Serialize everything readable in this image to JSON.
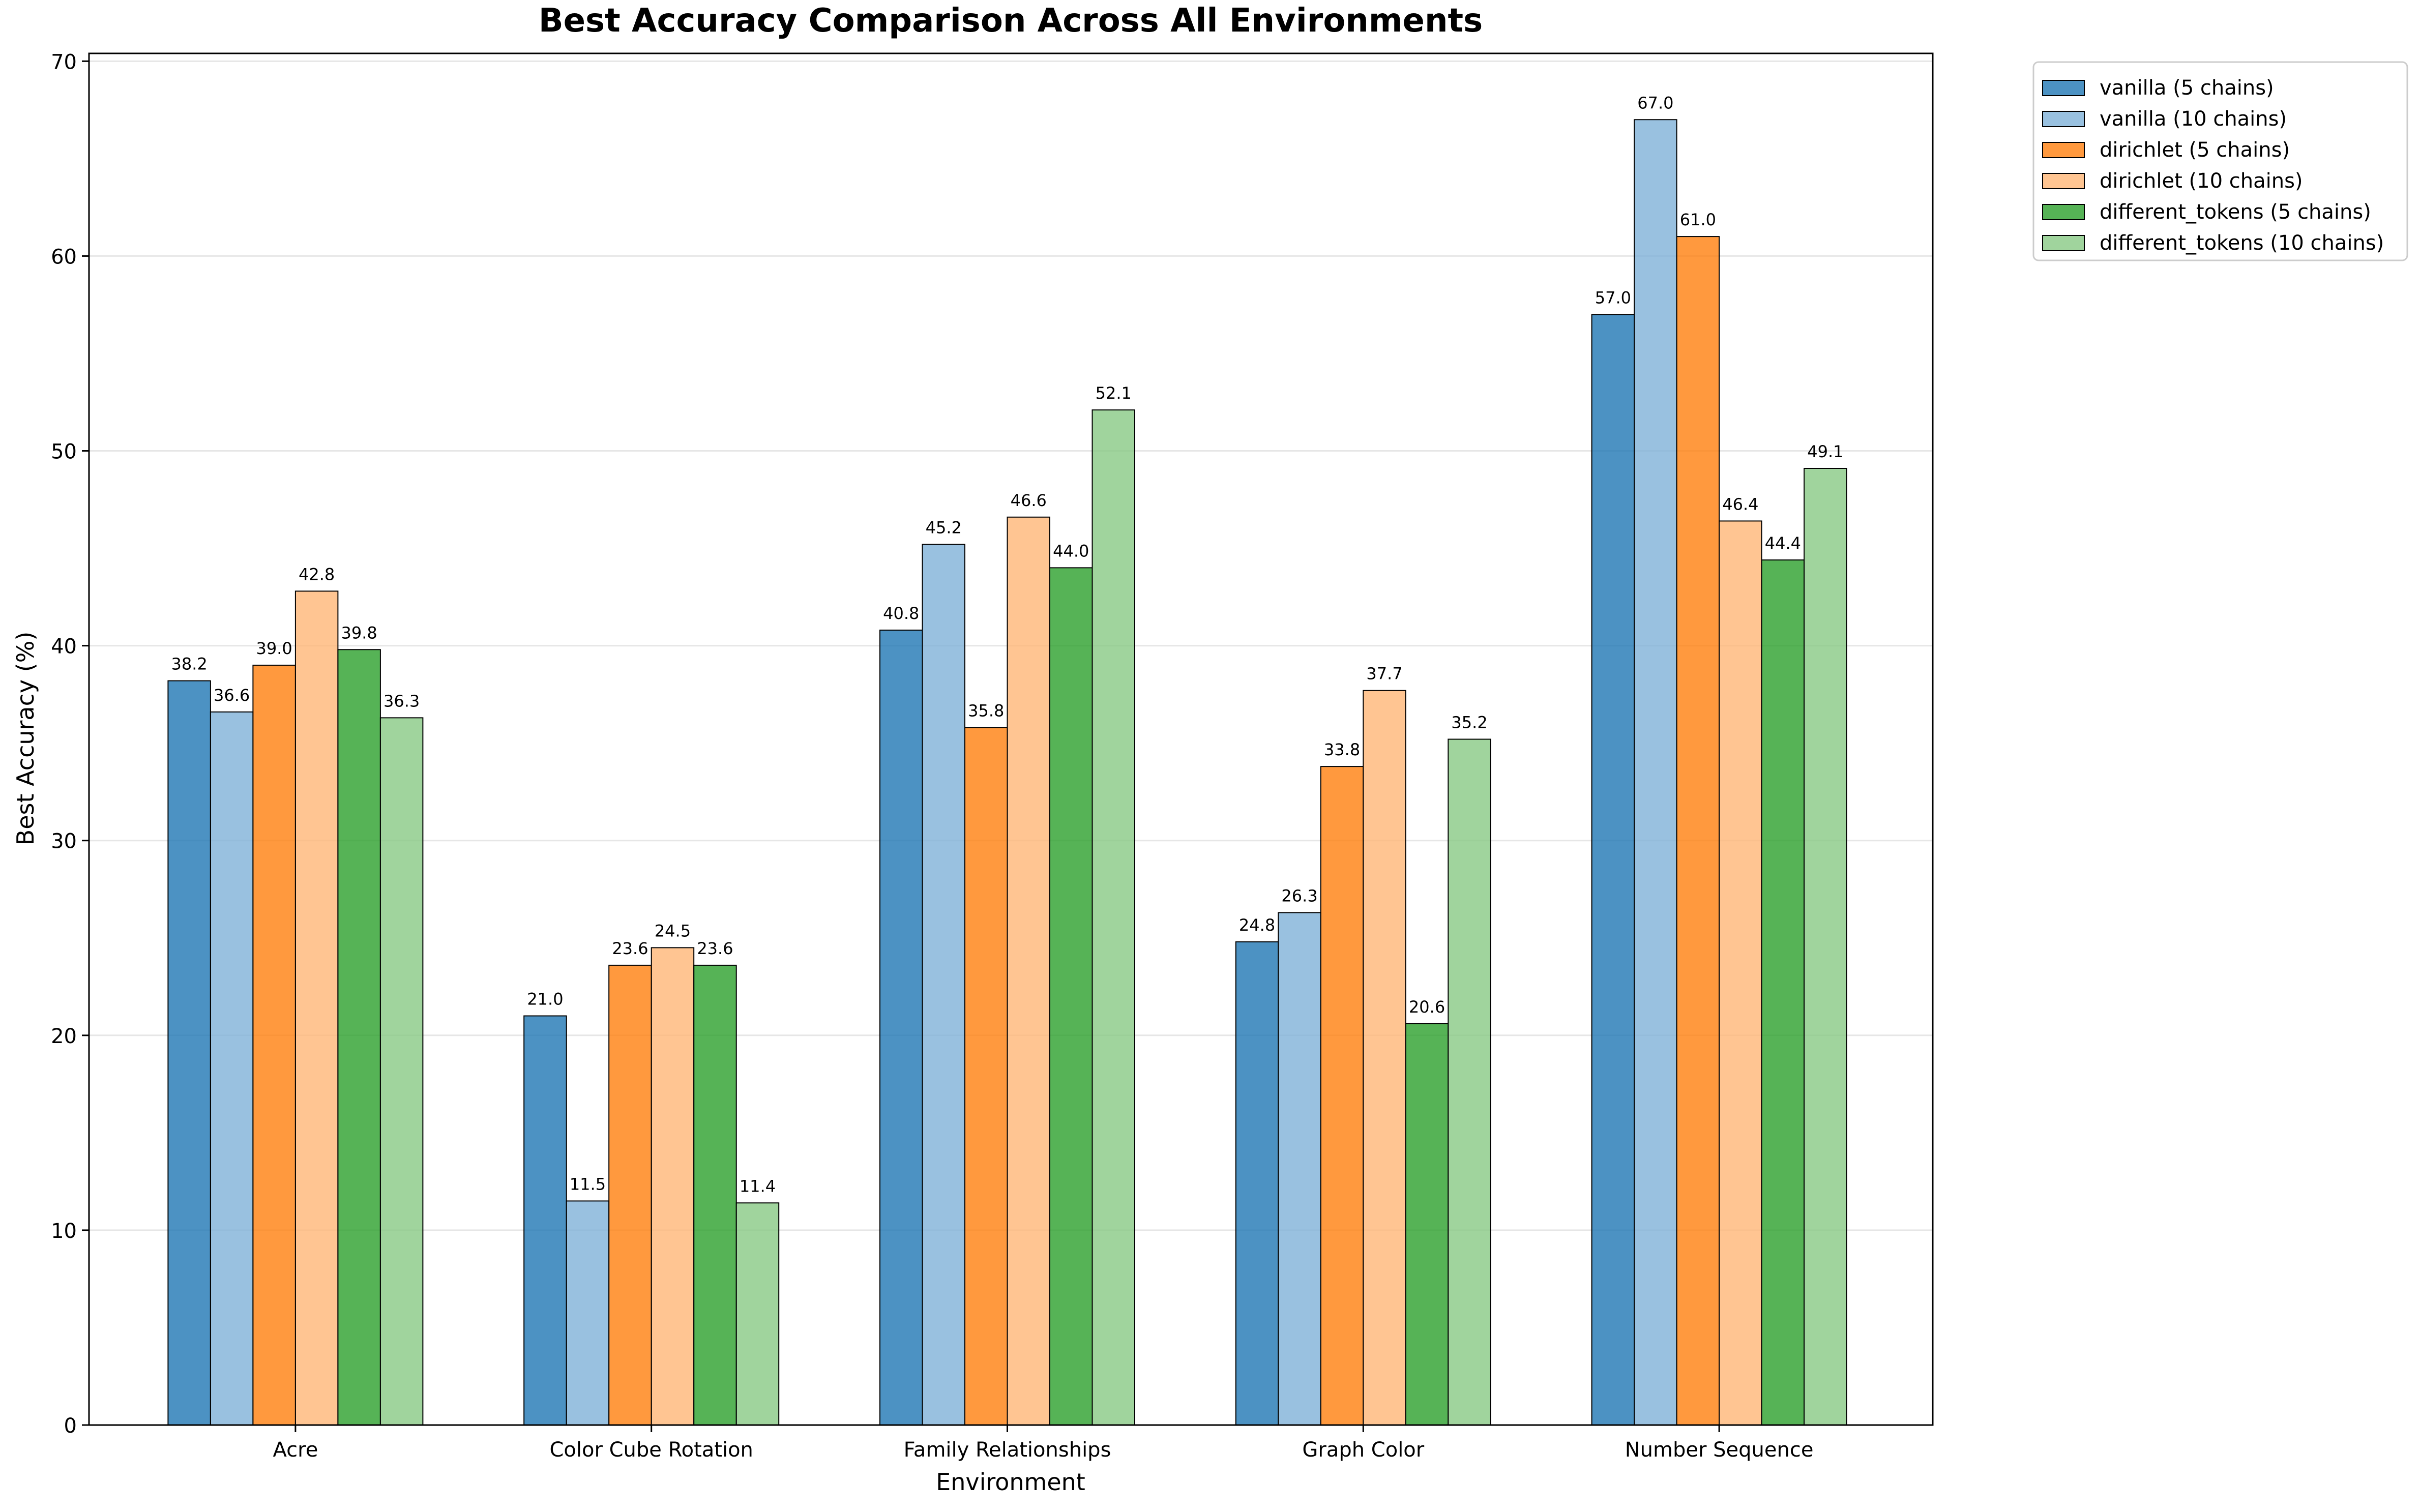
{
  "chart_data": {
    "type": "bar",
    "title": "Best Accuracy Comparison Across All Environments",
    "xlabel": "Environment",
    "ylabel": "Best Accuracy (%)",
    "ylim": [
      0,
      70.4
    ],
    "yticks": [
      0,
      10,
      20,
      30,
      40,
      50,
      60,
      70
    ],
    "grid": "horizontal",
    "legend_position": "outside top-right",
    "categories": [
      "Acre",
      "Color Cube Rotation",
      "Family Relationships",
      "Graph Color",
      "Number Sequence"
    ],
    "series": [
      {
        "name": "vanilla (5 chains)",
        "color": "#1f77b4",
        "values": [
          38.2,
          21.0,
          40.8,
          24.8,
          57.0
        ]
      },
      {
        "name": "vanilla (10 chains)",
        "color": "#7fb1d8",
        "values": [
          36.6,
          11.5,
          45.2,
          26.3,
          67.0
        ]
      },
      {
        "name": "dirichlet (5 chains)",
        "color": "#ff7f0e",
        "values": [
          39.0,
          23.6,
          35.8,
          33.8,
          61.0
        ]
      },
      {
        "name": "dirichlet (10 chains)",
        "color": "#ffb777",
        "values": [
          42.8,
          24.5,
          46.6,
          37.7,
          46.4
        ]
      },
      {
        "name": "different_tokens (5 chains)",
        "color": "#2ca02c",
        "values": [
          39.8,
          23.6,
          44.0,
          20.6,
          44.4
        ]
      },
      {
        "name": "different_tokens (10 chains)",
        "color": "#88c985",
        "values": [
          36.3,
          11.4,
          52.1,
          35.2,
          49.1
        ]
      }
    ],
    "bar_labels": [
      [
        "38.2",
        "21.0",
        "40.8",
        "24.8",
        "57.0"
      ],
      [
        "36.6",
        "11.5",
        "45.2",
        "26.3",
        "67.0"
      ],
      [
        "39.0",
        "23.6",
        "35.8",
        "33.8",
        "61.0"
      ],
      [
        "42.8",
        "24.5",
        "46.6",
        "37.7",
        "46.4"
      ],
      [
        "39.8",
        "23.6",
        "44.0",
        "20.6",
        "44.4"
      ],
      [
        "36.3",
        "11.4",
        "52.1",
        "35.2",
        "49.1"
      ]
    ]
  }
}
